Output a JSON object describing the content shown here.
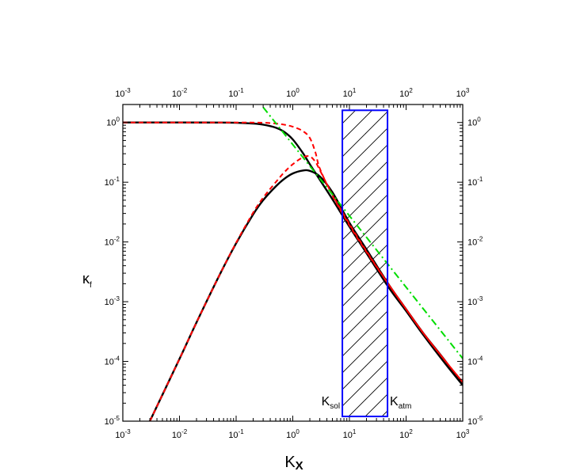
{
  "chart_data": {
    "type": "line",
    "title": "",
    "xlabel": {
      "main": "K",
      "sub": "X"
    },
    "ylabel": {
      "main": "κ",
      "sub": "f"
    },
    "xscale": "log",
    "yscale": "log",
    "xlim": [
      0.001,
      1000
    ],
    "ylim": [
      1e-05,
      2
    ],
    "x_ticks": [
      {
        "base": "10",
        "exp": "-3",
        "value": 0.001
      },
      {
        "base": "10",
        "exp": "-2",
        "value": 0.01
      },
      {
        "base": "10",
        "exp": "-1",
        "value": 0.1
      },
      {
        "base": "10",
        "exp": "0",
        "value": 1
      },
      {
        "base": "10",
        "exp": "1",
        "value": 10
      },
      {
        "base": "10",
        "exp": "2",
        "value": 100
      },
      {
        "base": "10",
        "exp": "3",
        "value": 1000
      }
    ],
    "y_ticks": [
      {
        "base": "10",
        "exp": "-5",
        "value": 1e-05
      },
      {
        "base": "10",
        "exp": "-4",
        "value": 0.0001
      },
      {
        "base": "10",
        "exp": "-3",
        "value": 0.001
      },
      {
        "base": "10",
        "exp": "-2",
        "value": 0.01
      },
      {
        "base": "10",
        "exp": "-1",
        "value": 0.1
      },
      {
        "base": "10",
        "exp": "0",
        "value": 1
      }
    ],
    "grid": false,
    "legend": "none",
    "series": [
      {
        "color": "#000000",
        "style": "solid",
        "x": [
          0.001,
          0.01,
          0.05,
          0.1,
          0.2,
          0.3,
          0.5,
          0.7,
          1,
          1.5,
          2,
          3,
          5,
          10,
          20,
          50,
          100,
          200,
          500,
          1000
        ],
        "y": [
          1.0,
          1.0,
          0.998,
          0.99,
          0.96,
          0.92,
          0.82,
          0.7,
          0.52,
          0.31,
          0.2,
          0.11,
          0.052,
          0.018,
          0.0065,
          0.0017,
          0.0007,
          0.00028,
          9e-05,
          4e-05
        ]
      },
      {
        "color": "#000000",
        "style": "solid",
        "x": [
          0.003,
          0.01,
          0.02,
          0.05,
          0.1,
          0.2,
          0.3,
          0.5,
          0.7,
          1,
          1.5,
          2,
          3,
          5,
          10,
          20,
          50,
          100,
          200,
          500,
          1000
        ],
        "y": [
          1e-05,
          0.00011,
          0.00045,
          0.0027,
          0.0095,
          0.029,
          0.05,
          0.085,
          0.113,
          0.14,
          0.157,
          0.155,
          0.125,
          0.068,
          0.021,
          0.0075,
          0.0019,
          0.00075,
          0.0003,
          0.0001,
          4e-05
        ]
      },
      {
        "color": "#ff0000",
        "style": "dashed",
        "x": [
          0.001,
          0.01,
          0.1,
          0.3,
          0.5,
          0.7,
          1,
          1.5,
          2,
          2.5,
          3,
          5,
          10,
          20,
          50,
          100,
          200,
          500,
          1000
        ],
        "y": [
          1.0,
          1.0,
          1.0,
          0.99,
          0.96,
          0.92,
          0.85,
          0.72,
          0.55,
          0.32,
          0.17,
          0.06,
          0.019,
          0.0068,
          0.0019,
          0.00075,
          0.0003,
          0.0001,
          4.5e-05
        ]
      },
      {
        "color": "#ff0000",
        "style": "dashed",
        "x": [
          0.003,
          0.01,
          0.02,
          0.05,
          0.1,
          0.2,
          0.3,
          0.5,
          0.7,
          1,
          1.5,
          2,
          2.5,
          3,
          5,
          10,
          20,
          50,
          100,
          200,
          500,
          1000
        ],
        "y": [
          1e-05,
          0.00011,
          0.00045,
          0.0027,
          0.0097,
          0.031,
          0.055,
          0.1,
          0.145,
          0.2,
          0.26,
          0.27,
          0.22,
          0.16,
          0.062,
          0.02,
          0.007,
          0.0019,
          0.00075,
          0.0003,
          0.0001,
          4.5e-05
        ]
      },
      {
        "color": "#00dd00",
        "style": "dash-dot",
        "x": [
          0.3,
          1000
        ],
        "y": [
          1.8,
          0.000112
        ]
      }
    ],
    "shaded_region": {
      "x_range": [
        7.5,
        47
      ],
      "y_range": [
        1.2e-05,
        1.6
      ],
      "edge_color": "#0000ff",
      "hatch": "diagonal",
      "left_label": {
        "main": "K",
        "sub": "sol"
      },
      "right_label": {
        "main": "K",
        "sub": "atm"
      }
    }
  }
}
